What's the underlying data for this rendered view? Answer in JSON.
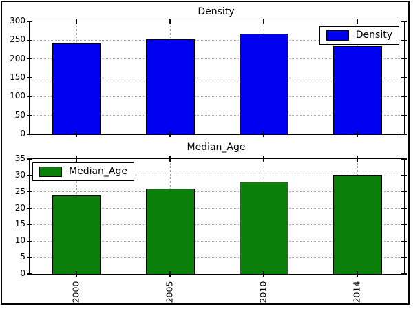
{
  "figure": {
    "background": "#ffffff",
    "frame_color": "#000000",
    "grid_color": "#a8a8a8"
  },
  "chart_data": [
    {
      "type": "bar",
      "title": "Density",
      "legend": {
        "label": "Density",
        "position": "top-right"
      },
      "categories": [
        "2000",
        "2005",
        "2010",
        "2014"
      ],
      "values": [
        242,
        253,
        267,
        234
      ],
      "ylim": [
        0,
        300
      ],
      "yticks": [
        0,
        50,
        100,
        150,
        200,
        250,
        300
      ],
      "bar_color": "#0000f0",
      "bar_edge_color": "#000000",
      "grid": true,
      "x_tick_labels_visible": false
    },
    {
      "type": "bar",
      "title": "Median_Age",
      "legend": {
        "label": "Median_Age",
        "position": "top-left"
      },
      "categories": [
        "2000",
        "2005",
        "2010",
        "2014"
      ],
      "values": [
        24,
        26,
        28,
        30
      ],
      "ylim": [
        0,
        35
      ],
      "yticks": [
        0,
        5,
        10,
        15,
        20,
        25,
        30,
        35
      ],
      "bar_color": "#0a800a",
      "bar_edge_color": "#000000",
      "grid": true,
      "x_tick_labels_visible": true
    }
  ]
}
